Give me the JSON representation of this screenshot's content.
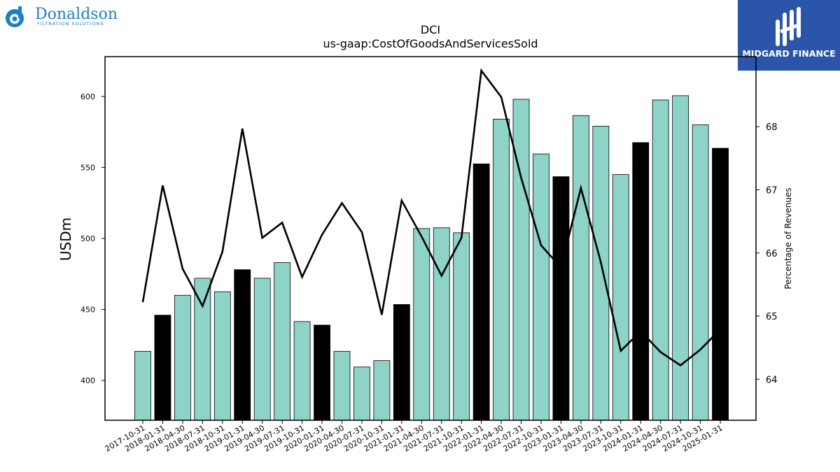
{
  "brand_left": {
    "name": "Donaldson",
    "tagline": "FILTRATION SOLUTIONS",
    "color": "#1f7fc1"
  },
  "brand_right": {
    "name": "MIDGARD FINANCE",
    "background": "#2a55a8"
  },
  "chart_data": {
    "type": "bar",
    "title": "DCI",
    "subtitle": "us-gaap:CostOfGoodsAndServicesSold",
    "ylabel": "USDm",
    "y2label": "Percentage of Revenues",
    "ylim": [
      372,
      628
    ],
    "y2lim": [
      63.35,
      69.11
    ],
    "yticks": [
      400,
      450,
      500,
      550,
      600
    ],
    "y2ticks": [
      64,
      65,
      66,
      67,
      68
    ],
    "categories": [
      "2017-10-31",
      "2018-01-31",
      "2018-04-30",
      "2018-07-31",
      "2018-10-31",
      "2019-01-31",
      "2019-04-30",
      "2019-07-31",
      "2019-10-31",
      "2020-01-31",
      "2020-04-30",
      "2020-07-31",
      "2020-10-31",
      "2021-01-31",
      "2021-04-30",
      "2021-07-31",
      "2021-10-31",
      "2022-01-31",
      "2022-04-30",
      "2022-07-31",
      "2022-10-31",
      "2023-01-31",
      "2023-04-30",
      "2023-07-31",
      "2023-10-31",
      "2024-01-31",
      "2024-04-30",
      "2024-07-31",
      "2024-10-31",
      "2025-01-31"
    ],
    "series": [
      {
        "type": "bar",
        "values": [
          420.5,
          446,
          460,
          472,
          462.5,
          478,
          472,
          483,
          441.5,
          439,
          420.5,
          409.5,
          414,
          453.5,
          507,
          507.5,
          504,
          552.5,
          584,
          598,
          559.5,
          543.5,
          586.5,
          579,
          545,
          567.5,
          597.5,
          600.5,
          580,
          563.5
        ],
        "colors": [
          "#8dd3c7",
          "#000000",
          "#8dd3c7",
          "#8dd3c7",
          "#8dd3c7",
          "#000000",
          "#8dd3c7",
          "#8dd3c7",
          "#8dd3c7",
          "#000000",
          "#8dd3c7",
          "#8dd3c7",
          "#8dd3c7",
          "#000000",
          "#8dd3c7",
          "#8dd3c7",
          "#8dd3c7",
          "#000000",
          "#8dd3c7",
          "#8dd3c7",
          "#8dd3c7",
          "#000000",
          "#8dd3c7",
          "#8dd3c7",
          "#8dd3c7",
          "#000000",
          "#8dd3c7",
          "#8dd3c7",
          "#8dd3c7",
          "#000000"
        ]
      },
      {
        "type": "line",
        "axis": "right",
        "color": "#000000",
        "values": [
          65.22,
          67.07,
          65.75,
          65.16,
          66.02,
          67.97,
          66.24,
          66.48,
          65.62,
          66.29,
          66.79,
          66.33,
          65.02,
          66.83,
          66.26,
          65.64,
          66.24,
          68.89,
          68.47,
          67.19,
          66.12,
          65.77,
          67.03,
          65.85,
          64.45,
          64.76,
          64.43,
          64.22,
          64.47,
          64.79
        ]
      }
    ]
  }
}
